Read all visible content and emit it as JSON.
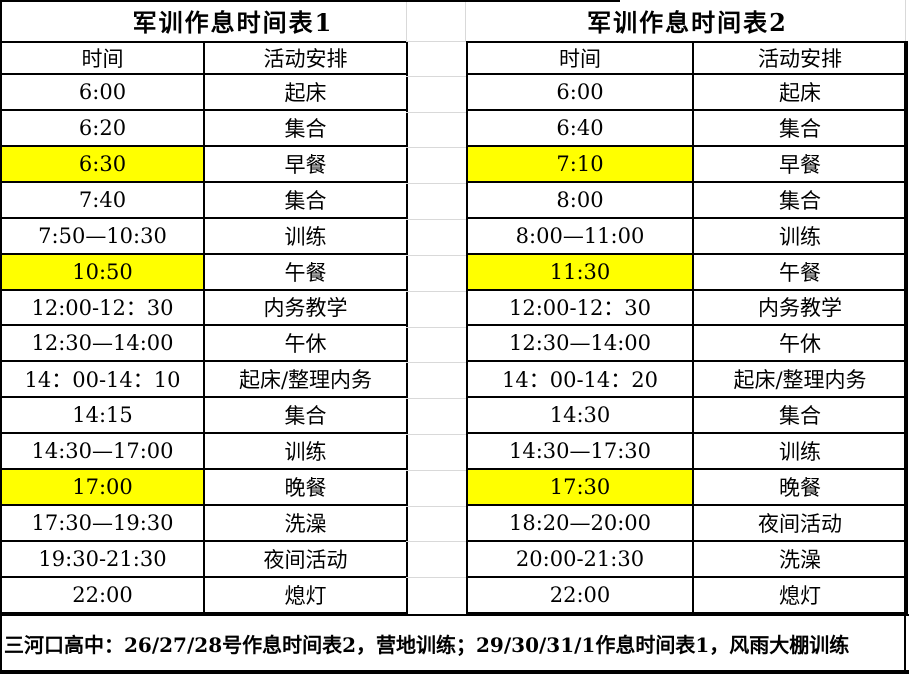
{
  "colors": {
    "highlight": "#ffff00",
    "border": "#000000",
    "gridline": "#d9d9d9",
    "background": "#ffffff",
    "text": "#000000"
  },
  "tables": [
    {
      "title": "军训作息时间表1",
      "columns": [
        "时间",
        "活动安排"
      ],
      "rows": [
        {
          "time": "6:00",
          "activity": "起床",
          "highlight": false
        },
        {
          "time": "6:20",
          "activity": "集合",
          "highlight": false
        },
        {
          "time": "6:30",
          "activity": "早餐",
          "highlight": true
        },
        {
          "time": "7:40",
          "activity": "集合",
          "highlight": false
        },
        {
          "time": "7:50—10:30",
          "activity": "训练",
          "highlight": false
        },
        {
          "time": "10:50",
          "activity": "午餐",
          "highlight": true
        },
        {
          "time": "12:00-12：30",
          "activity": "内务教学",
          "highlight": false
        },
        {
          "time": "12:30—14:00",
          "activity": "午休",
          "highlight": false
        },
        {
          "time": "14：00-14：10",
          "activity": "起床/整理内务",
          "highlight": false
        },
        {
          "time": "14:15",
          "activity": "集合",
          "highlight": false
        },
        {
          "time": "14:30—17:00",
          "activity": "训练",
          "highlight": false
        },
        {
          "time": "17:00",
          "activity": "晚餐",
          "highlight": true
        },
        {
          "time": "17:30—19:30",
          "activity": "洗澡",
          "highlight": false
        },
        {
          "time": "19:30-21:30",
          "activity": "夜间活动",
          "highlight": false
        },
        {
          "time": "22:00",
          "activity": "熄灯",
          "highlight": false
        }
      ]
    },
    {
      "title": "军训作息时间表2",
      "columns": [
        "时间",
        "活动安排"
      ],
      "rows": [
        {
          "time": "6:00",
          "activity": "起床",
          "highlight": false
        },
        {
          "time": "6:40",
          "activity": "集合",
          "highlight": false
        },
        {
          "time": "7:10",
          "activity": "早餐",
          "highlight": true
        },
        {
          "time": "8:00",
          "activity": "集合",
          "highlight": false
        },
        {
          "time": "8:00—11:00",
          "activity": "训练",
          "highlight": false
        },
        {
          "time": "11:30",
          "activity": "午餐",
          "highlight": true
        },
        {
          "time": "12:00-12：30",
          "activity": "内务教学",
          "highlight": false
        },
        {
          "time": "12:30—14:00",
          "activity": "午休",
          "highlight": false
        },
        {
          "time": "14：00-14：20",
          "activity": "起床/整理内务",
          "highlight": false
        },
        {
          "time": "14:30",
          "activity": "集合",
          "highlight": false
        },
        {
          "time": "14:30—17:30",
          "activity": "训练",
          "highlight": false
        },
        {
          "time": "17:30",
          "activity": "晚餐",
          "highlight": true
        },
        {
          "time": "18:20—20:00",
          "activity": "夜间活动",
          "highlight": false
        },
        {
          "time": "20:00-21:30",
          "activity": "洗澡",
          "highlight": false
        },
        {
          "time": "22:00",
          "activity": "熄灯",
          "highlight": false
        }
      ]
    }
  ],
  "footer": {
    "note": "三河口高中：26/27/28号作息时间表2，营地训练；29/30/31/1作息时间表1，风雨大棚训练"
  }
}
